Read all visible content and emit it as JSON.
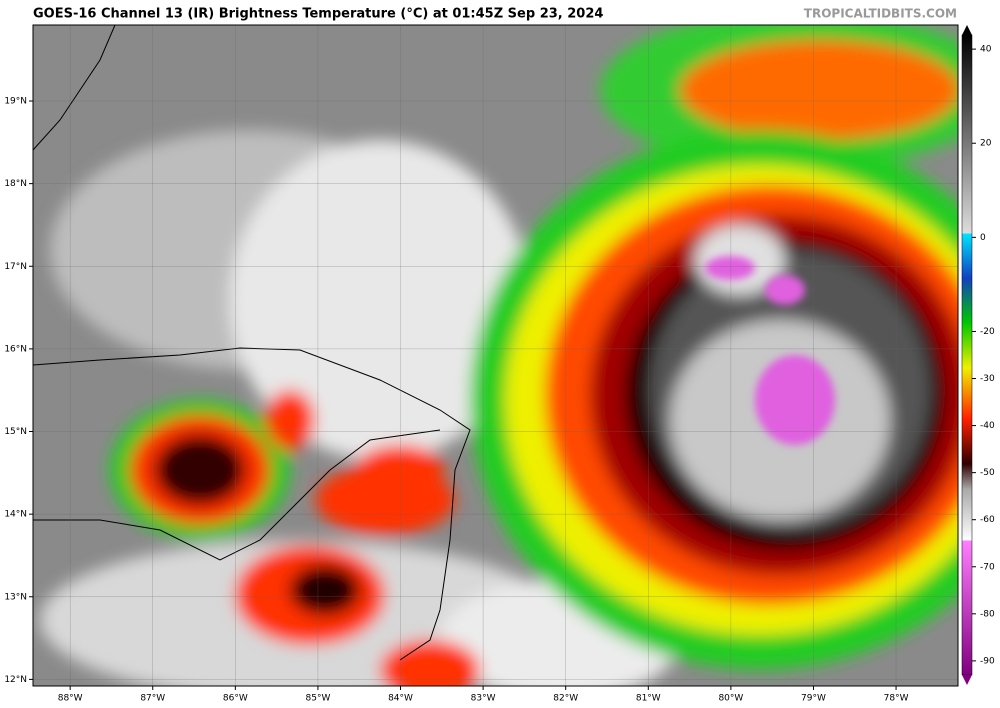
{
  "header": {
    "title": "GOES-16 Channel 13 (IR) Brightness Temperature (°C) at 01:45Z Sep 23, 2024",
    "credit": "TROPICALTIDBITS.COM"
  },
  "map": {
    "lon_lim": [
      -88.45,
      -77.25
    ],
    "lat_lim": [
      19.92,
      11.92
    ],
    "lon_ticks": [
      {
        "value": -88,
        "label": "88°W"
      },
      {
        "value": -87,
        "label": "87°W"
      },
      {
        "value": -86,
        "label": "86°W"
      },
      {
        "value": -85,
        "label": "85°W"
      },
      {
        "value": -84,
        "label": "84°W"
      },
      {
        "value": -83,
        "label": "83°W"
      },
      {
        "value": -82,
        "label": "82°W"
      },
      {
        "value": -81,
        "label": "81°W"
      },
      {
        "value": -80,
        "label": "80°W"
      },
      {
        "value": -79,
        "label": "79°W"
      },
      {
        "value": -78,
        "label": "78°W"
      }
    ],
    "lat_ticks": [
      {
        "value": 19,
        "label": "19°N"
      },
      {
        "value": 18,
        "label": "18°N"
      },
      {
        "value": 17,
        "label": "17°N"
      },
      {
        "value": 16,
        "label": "16°N"
      },
      {
        "value": 15,
        "label": "15°N"
      },
      {
        "value": 14,
        "label": "14°N"
      },
      {
        "value": 13,
        "label": "13°N"
      },
      {
        "value": 12,
        "label": "12°N"
      }
    ]
  },
  "colorbar": {
    "lim": [
      43,
      -93
    ],
    "ticks": [
      40,
      20,
      0,
      -20,
      -30,
      -40,
      -50,
      -60,
      -70,
      -80,
      -90
    ]
  }
}
